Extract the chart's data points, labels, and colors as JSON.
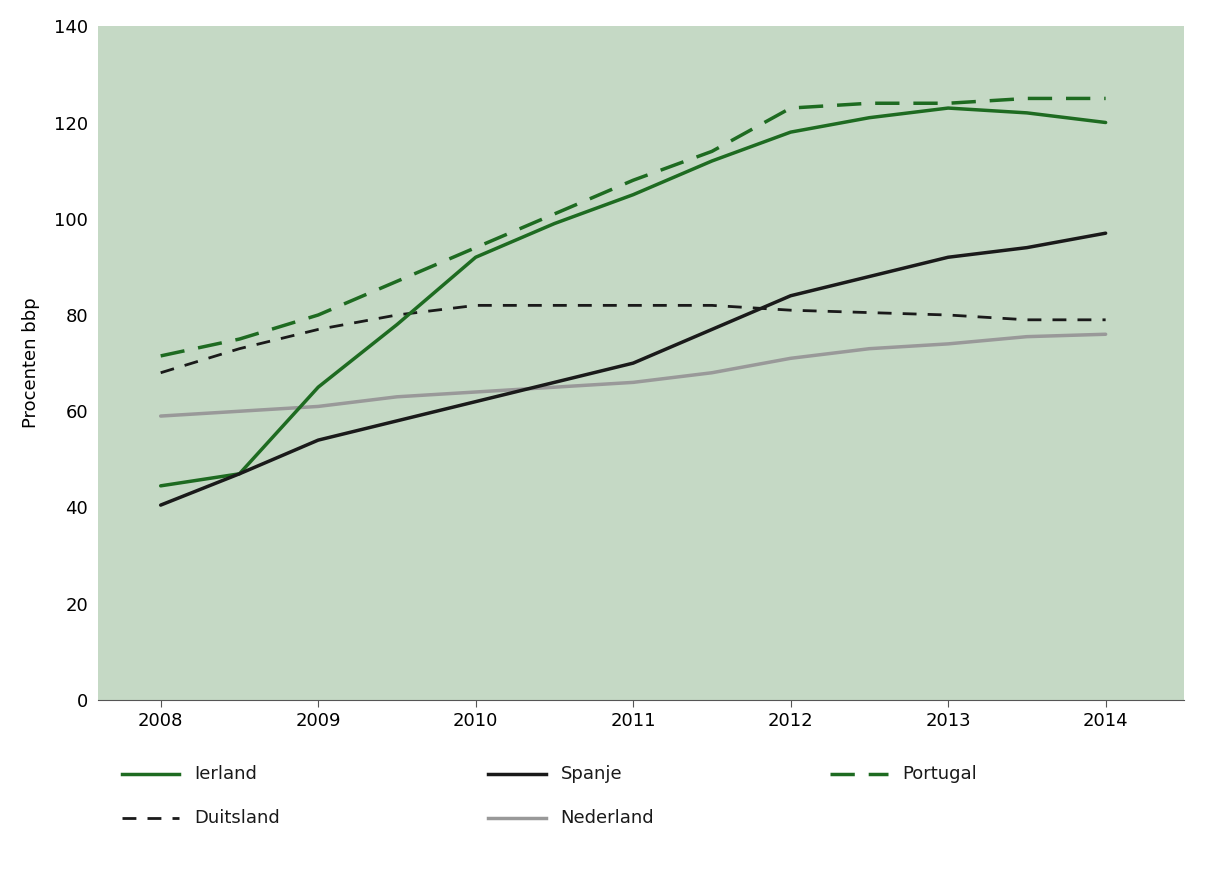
{
  "years": [
    2008,
    2008.5,
    2009,
    2009.5,
    2010,
    2010.5,
    2011,
    2011.5,
    2012,
    2012.5,
    2013,
    2013.5,
    2014
  ],
  "ierland": [
    44.5,
    47,
    65,
    78,
    92,
    99,
    105,
    112,
    118,
    121,
    123,
    122,
    120
  ],
  "spanje": [
    40.5,
    47,
    54,
    58,
    62,
    66,
    70,
    77,
    84,
    88,
    92,
    94,
    97
  ],
  "portugal": [
    71.5,
    75,
    80,
    87,
    94,
    101,
    108,
    114,
    123,
    124,
    124,
    125,
    125
  ],
  "duitsland": [
    68,
    73,
    77,
    80,
    82,
    82,
    82,
    82,
    81,
    80.5,
    80,
    79,
    79
  ],
  "nederland": [
    59,
    60,
    61,
    63,
    64,
    65,
    66,
    68,
    71,
    73,
    74,
    75.5,
    76
  ],
  "colors": {
    "ierland": "#1e6b21",
    "spanje": "#1a1a1a",
    "portugal": "#1e6b21",
    "duitsland": "#1a1a1a",
    "nederland": "#999999"
  },
  "background_color": "#c5d9c5",
  "fig_facecolor": "#ffffff",
  "ylabel": "Procenten bbp",
  "ylim": [
    0,
    140
  ],
  "yticks": [
    0,
    20,
    40,
    60,
    80,
    100,
    120,
    140
  ],
  "xlim": [
    2007.6,
    2014.5
  ],
  "xticks": [
    2008,
    2009,
    2010,
    2011,
    2012,
    2013,
    2014
  ],
  "tick_fontsize": 13,
  "ylabel_fontsize": 13,
  "legend_fontsize": 13,
  "linewidth_solid": 2.5,
  "linewidth_dashed_duitsland": 2.0,
  "legend_items": [
    {
      "label": "Ierland",
      "color": "#1e6b21",
      "linestyle": "solid",
      "row": 0,
      "col": 0
    },
    {
      "label": "Spanje",
      "color": "#1a1a1a",
      "linestyle": "solid",
      "row": 0,
      "col": 1
    },
    {
      "label": "Portugal",
      "color": "#1e6b21",
      "linestyle": "dashed",
      "row": 0,
      "col": 2
    },
    {
      "label": "Duitsland",
      "color": "#1a1a1a",
      "linestyle": "dashed",
      "row": 1,
      "col": 0
    },
    {
      "label": "Nederland",
      "color": "#999999",
      "linestyle": "solid",
      "row": 1,
      "col": 1
    }
  ]
}
